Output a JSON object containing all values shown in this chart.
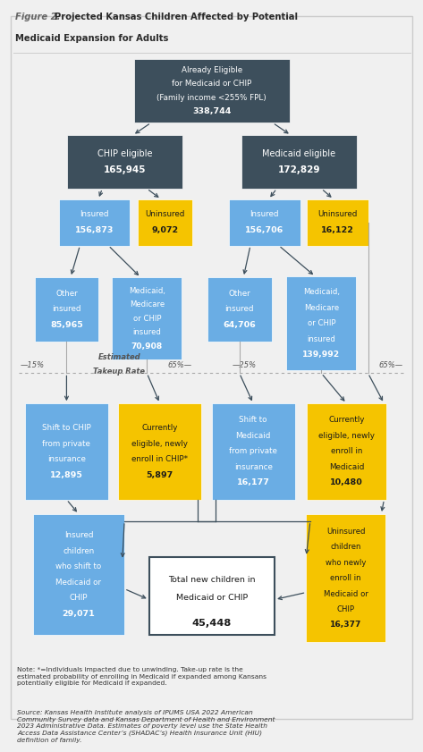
{
  "bg_color": "#f0f0f0",
  "dark_box_color": "#3d4f5c",
  "light_blue_color": "#6aade4",
  "gold_color": "#f5c400",
  "arrow_color": "#3d4f5c",
  "title_italic": "Figure 2.",
  "title_bold": "Projected Kansas Children Affected by Potential Medicaid Expansion for Adults",
  "note_text": "Note: *=Individuals impacted due to unwinding. Take-up rate is the\nestimated probability of enrolling in Medicaid if expanded among Kansans\npotentially eligible for Medicaid if expanded.",
  "source_text": "Source: Kansas Health Institute analysis of IPUMS USA 2022 American\nCommunity Survey data and Kansas Department of Health and Environment\n2023 Administrative Data. Estimates of poverty level use the State Health\nAccess Data Assistance Center’s (SHADAC’s) Health Insurance Unit (HIU)\ndefinition of family."
}
